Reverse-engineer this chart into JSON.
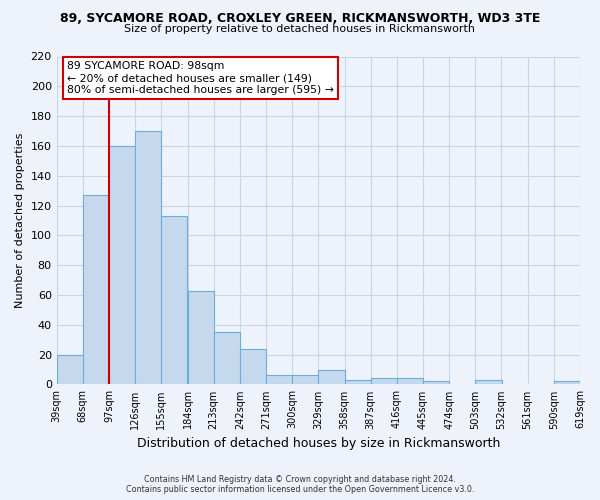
{
  "title": "89, SYCAMORE ROAD, CROXLEY GREEN, RICKMANSWORTH, WD3 3TE",
  "subtitle": "Size of property relative to detached houses in Rickmansworth",
  "xlabel": "Distribution of detached houses by size in Rickmansworth",
  "ylabel": "Number of detached properties",
  "bar_values": [
    20,
    127,
    160,
    170,
    113,
    63,
    35,
    24,
    6,
    6,
    10,
    3,
    4,
    4,
    2,
    0,
    3,
    0,
    0,
    2
  ],
  "bin_labels": [
    "39sqm",
    "68sqm",
    "97sqm",
    "126sqm",
    "155sqm",
    "184sqm",
    "213sqm",
    "242sqm",
    "271sqm",
    "300sqm",
    "329sqm",
    "358sqm",
    "387sqm",
    "416sqm",
    "445sqm",
    "474sqm",
    "503sqm",
    "532sqm",
    "561sqm",
    "590sqm",
    "619sqm"
  ],
  "bin_starts": [
    39,
    68,
    97,
    126,
    155,
    184,
    213,
    242,
    271,
    300,
    329,
    358,
    387,
    416,
    445,
    474,
    503,
    532,
    561,
    590
  ],
  "bin_width": 29,
  "bar_color": "#c5d9ee",
  "bar_edge_color": "#6baed6",
  "marker_x": 97,
  "marker_line_color": "#cc0000",
  "ylim": [
    0,
    220
  ],
  "yticks": [
    0,
    20,
    40,
    60,
    80,
    100,
    120,
    140,
    160,
    180,
    200,
    220
  ],
  "xlim_left": 39,
  "xlim_right": 619,
  "annotation_title": "89 SYCAMORE ROAD: 98sqm",
  "annotation_line1": "← 20% of detached houses are smaller (149)",
  "annotation_line2": "80% of semi-detached houses are larger (595) →",
  "annotation_box_facecolor": "#ffffff",
  "annotation_box_edgecolor": "#cc0000",
  "footer_line1": "Contains HM Land Registry data © Crown copyright and database right 2024.",
  "footer_line2": "Contains public sector information licensed under the Open Government Licence v3.0.",
  "background_color": "#eef2fa",
  "grid_color": "#c8d4e8",
  "tick_label_fontsize": 7,
  "ylabel_fontsize": 8,
  "xlabel_fontsize": 9,
  "title_fontsize": 9,
  "subtitle_fontsize": 8
}
